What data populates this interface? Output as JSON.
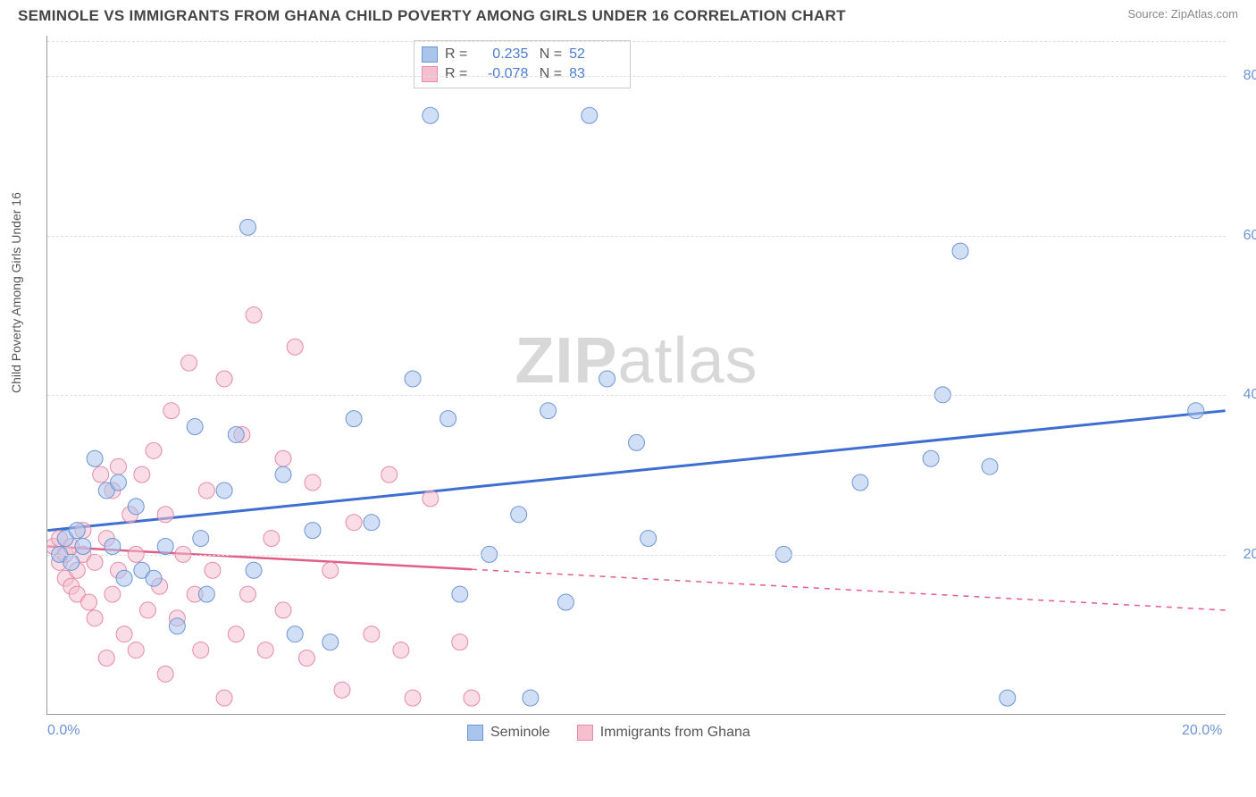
{
  "title": "SEMINOLE VS IMMIGRANTS FROM GHANA CHILD POVERTY AMONG GIRLS UNDER 16 CORRELATION CHART",
  "source": "Source: ZipAtlas.com",
  "y_axis_label": "Child Poverty Among Girls Under 16",
  "watermark_a": "ZIP",
  "watermark_b": "atlas",
  "chart": {
    "type": "scatter",
    "xlim": [
      0,
      20
    ],
    "ylim": [
      0,
      85
    ],
    "x_ticks": [
      {
        "value": 0,
        "label": "0.0%"
      },
      {
        "value": 20,
        "label": "20.0%"
      }
    ],
    "y_ticks": [
      {
        "value": 20,
        "label": "20.0%"
      },
      {
        "value": 40,
        "label": "40.0%"
      },
      {
        "value": 60,
        "label": "60.0%"
      },
      {
        "value": 80,
        "label": "80.0%"
      }
    ],
    "grid_color": "#dddddd",
    "axis_color": "#999999",
    "background_color": "#ffffff",
    "series": [
      {
        "name": "Seminole",
        "marker_color": "#a9c5ec",
        "marker_stroke": "#6b94d6",
        "marker_opacity": 0.55,
        "marker_radius": 9,
        "line_color": "#3e6fd0",
        "line_width": 3,
        "R": "0.235",
        "N": "52",
        "trend": {
          "x1": 0,
          "y1": 23,
          "x2": 20,
          "y2": 38,
          "solid_to_x": 20
        },
        "points": [
          [
            0.2,
            20
          ],
          [
            0.3,
            22
          ],
          [
            0.4,
            19
          ],
          [
            0.5,
            23
          ],
          [
            0.6,
            21
          ],
          [
            0.8,
            32
          ],
          [
            1.0,
            28
          ],
          [
            1.1,
            21
          ],
          [
            1.2,
            29
          ],
          [
            1.3,
            17
          ],
          [
            1.5,
            26
          ],
          [
            1.6,
            18
          ],
          [
            1.8,
            17
          ],
          [
            2.0,
            21
          ],
          [
            2.2,
            11
          ],
          [
            2.5,
            36
          ],
          [
            2.6,
            22
          ],
          [
            2.7,
            15
          ],
          [
            3.0,
            28
          ],
          [
            3.2,
            35
          ],
          [
            3.4,
            61
          ],
          [
            3.5,
            18
          ],
          [
            4.0,
            30
          ],
          [
            4.2,
            10
          ],
          [
            4.5,
            23
          ],
          [
            4.8,
            9
          ],
          [
            5.2,
            37
          ],
          [
            5.5,
            24
          ],
          [
            6.2,
            42
          ],
          [
            6.5,
            75
          ],
          [
            6.8,
            37
          ],
          [
            7.0,
            15
          ],
          [
            7.5,
            20
          ],
          [
            8.0,
            25
          ],
          [
            8.2,
            2
          ],
          [
            8.5,
            38
          ],
          [
            8.8,
            14
          ],
          [
            9.2,
            75
          ],
          [
            9.5,
            42
          ],
          [
            10.0,
            34
          ],
          [
            10.2,
            22
          ],
          [
            12.5,
            20
          ],
          [
            13.8,
            29
          ],
          [
            15.0,
            32
          ],
          [
            15.2,
            40
          ],
          [
            15.5,
            58
          ],
          [
            16.0,
            31
          ],
          [
            16.3,
            2
          ],
          [
            19.5,
            38
          ]
        ]
      },
      {
        "name": "Immigrants from Ghana",
        "marker_color": "#f4c0cf",
        "marker_stroke": "#e68aa5",
        "marker_opacity": 0.55,
        "marker_radius": 9,
        "line_color": "#e15e86",
        "line_width": 2.5,
        "R": "-0.078",
        "N": "83",
        "trend": {
          "x1": 0,
          "y1": 21,
          "x2": 20,
          "y2": 13,
          "solid_to_x": 7.2
        },
        "points": [
          [
            0.1,
            21
          ],
          [
            0.2,
            19
          ],
          [
            0.2,
            22
          ],
          [
            0.3,
            17
          ],
          [
            0.3,
            20
          ],
          [
            0.4,
            16
          ],
          [
            0.4,
            21
          ],
          [
            0.5,
            18
          ],
          [
            0.5,
            15
          ],
          [
            0.6,
            20
          ],
          [
            0.6,
            23
          ],
          [
            0.7,
            14
          ],
          [
            0.8,
            19
          ],
          [
            0.8,
            12
          ],
          [
            0.9,
            30
          ],
          [
            1.0,
            22
          ],
          [
            1.0,
            7
          ],
          [
            1.1,
            28
          ],
          [
            1.1,
            15
          ],
          [
            1.2,
            31
          ],
          [
            1.2,
            18
          ],
          [
            1.3,
            10
          ],
          [
            1.4,
            25
          ],
          [
            1.5,
            20
          ],
          [
            1.5,
            8
          ],
          [
            1.6,
            30
          ],
          [
            1.7,
            13
          ],
          [
            1.8,
            33
          ],
          [
            1.9,
            16
          ],
          [
            2.0,
            5
          ],
          [
            2.0,
            25
          ],
          [
            2.1,
            38
          ],
          [
            2.2,
            12
          ],
          [
            2.3,
            20
          ],
          [
            2.4,
            44
          ],
          [
            2.5,
            15
          ],
          [
            2.6,
            8
          ],
          [
            2.7,
            28
          ],
          [
            2.8,
            18
          ],
          [
            3.0,
            42
          ],
          [
            3.0,
            2
          ],
          [
            3.2,
            10
          ],
          [
            3.3,
            35
          ],
          [
            3.4,
            15
          ],
          [
            3.5,
            50
          ],
          [
            3.7,
            8
          ],
          [
            3.8,
            22
          ],
          [
            4.0,
            13
          ],
          [
            4.0,
            32
          ],
          [
            4.2,
            46
          ],
          [
            4.4,
            7
          ],
          [
            4.5,
            29
          ],
          [
            4.8,
            18
          ],
          [
            5.0,
            3
          ],
          [
            5.2,
            24
          ],
          [
            5.5,
            10
          ],
          [
            5.8,
            30
          ],
          [
            6.0,
            8
          ],
          [
            6.2,
            2
          ],
          [
            6.5,
            27
          ],
          [
            7.0,
            9
          ],
          [
            7.2,
            2
          ]
        ]
      }
    ],
    "stat_labels": {
      "R": "R =",
      "N": "N ="
    }
  },
  "legend": {
    "series1": "Seminole",
    "series2": "Immigrants from Ghana"
  }
}
